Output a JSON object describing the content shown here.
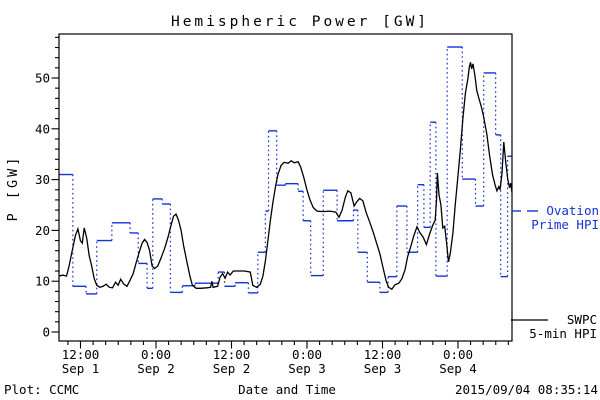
{
  "title": "Hemispheric Power [GW]",
  "footer": {
    "plot_source": "Plot: CCMC",
    "timestamp": "2015/09/04 08:35:14"
  },
  "legend": {
    "ovation": {
      "line1": "Ovation",
      "line2": "Prime HPI",
      "color": "#1433d6"
    },
    "swpc": {
      "line1": "SWPC",
      "line2": "5-min HPI",
      "color": "#000000"
    }
  },
  "chart_data": {
    "type": "line",
    "title": "Hemispheric Power [GW]",
    "xlabel": "Date and Time",
    "ylabel": "P [GW]",
    "grid": false,
    "legend_position": "right-outside",
    "ylim": [
      -1.8,
      58.6
    ],
    "xlim_hours": [
      0,
      72
    ],
    "x_unit": "hours_from_plot_start",
    "y_major_ticks": [
      0,
      10,
      20,
      30,
      40,
      50
    ],
    "y_minor_tick_gw": 2,
    "x_minor_tick_hours": 2,
    "x_major_ticks": [
      {
        "t": 3.42,
        "time": "12:00",
        "date": "Sep 1"
      },
      {
        "t": 15.42,
        "time": "0:00",
        "date": "Sep 2"
      },
      {
        "t": 27.42,
        "time": "12:00",
        "date": "Sep 2"
      },
      {
        "t": 39.42,
        "time": "0:00",
        "date": "Sep 3"
      },
      {
        "t": 51.42,
        "time": "12:00",
        "date": "Sep 3"
      },
      {
        "t": 63.42,
        "time": "0:00",
        "date": "Sep 4"
      }
    ],
    "series": [
      {
        "name": "Ovation Prime HPI",
        "style": "step-dotted",
        "color": "#1433d6",
        "points": [
          [
            0.0,
            31.0
          ],
          [
            2.2,
            9.0
          ],
          [
            4.3,
            7.5
          ],
          [
            6.0,
            18.0
          ],
          [
            8.4,
            21.5
          ],
          [
            11.3,
            19.5
          ],
          [
            12.6,
            13.5
          ],
          [
            14.0,
            8.6
          ],
          [
            14.9,
            26.2
          ],
          [
            16.4,
            25.2
          ],
          [
            17.7,
            7.8
          ],
          [
            19.6,
            9.1
          ],
          [
            21.6,
            9.6
          ],
          [
            25.3,
            11.8
          ],
          [
            26.3,
            9.0
          ],
          [
            28.0,
            9.7
          ],
          [
            30.1,
            7.7
          ],
          [
            31.6,
            15.7
          ],
          [
            32.8,
            23.8
          ],
          [
            33.3,
            39.6
          ],
          [
            34.6,
            28.9
          ],
          [
            36.0,
            29.2
          ],
          [
            38.0,
            27.7
          ],
          [
            38.8,
            21.9
          ],
          [
            40.0,
            11.1
          ],
          [
            42.0,
            27.9
          ],
          [
            44.2,
            21.9
          ],
          [
            46.8,
            24.0
          ],
          [
            47.5,
            15.7
          ],
          [
            49.0,
            9.8
          ],
          [
            51.0,
            7.8
          ],
          [
            52.3,
            10.9
          ],
          [
            53.7,
            24.8
          ],
          [
            55.3,
            15.7
          ],
          [
            57.0,
            29.0
          ],
          [
            58.0,
            20.6
          ],
          [
            59.0,
            41.3
          ],
          [
            59.9,
            11.0
          ],
          [
            61.7,
            56.1
          ],
          [
            64.1,
            30.1
          ],
          [
            66.2,
            24.8
          ],
          [
            67.5,
            51.0
          ],
          [
            69.4,
            38.8
          ],
          [
            70.2,
            10.9
          ],
          [
            71.3,
            34.6
          ]
        ],
        "end_hour": 72
      },
      {
        "name": "SWPC 5-min HPI",
        "style": "line",
        "color": "#000000",
        "points": [
          [
            0,
            11
          ],
          [
            0.6,
            11.2
          ],
          [
            1.2,
            11
          ],
          [
            1.6,
            13
          ],
          [
            2.1,
            16
          ],
          [
            2.6,
            19
          ],
          [
            3,
            20.3
          ],
          [
            3.4,
            18
          ],
          [
            3.7,
            17.5
          ],
          [
            4,
            20.5
          ],
          [
            4.4,
            18.5
          ],
          [
            4.8,
            15
          ],
          [
            5.2,
            13
          ],
          [
            5.6,
            10.5
          ],
          [
            6,
            9.2
          ],
          [
            6.5,
            8.8
          ],
          [
            7,
            9
          ],
          [
            7.5,
            9.4
          ],
          [
            8,
            8.8
          ],
          [
            8.5,
            8.7
          ],
          [
            9,
            9.8
          ],
          [
            9.4,
            9.2
          ],
          [
            9.8,
            10.4
          ],
          [
            10.3,
            9.4
          ],
          [
            10.8,
            9
          ],
          [
            11.3,
            10.2
          ],
          [
            11.8,
            11.5
          ],
          [
            12.2,
            13.4
          ],
          [
            12.7,
            15.5
          ],
          [
            13.2,
            17.5
          ],
          [
            13.6,
            18.2
          ],
          [
            14,
            17.6
          ],
          [
            14.4,
            16
          ],
          [
            14.8,
            13
          ],
          [
            15.2,
            12.5
          ],
          [
            15.7,
            13
          ],
          [
            16.2,
            14.5
          ],
          [
            16.8,
            16.5
          ],
          [
            17.3,
            18.5
          ],
          [
            17.8,
            21
          ],
          [
            18.2,
            22.8
          ],
          [
            18.6,
            23.2
          ],
          [
            19,
            22
          ],
          [
            19.4,
            20
          ],
          [
            19.8,
            17
          ],
          [
            20.3,
            14
          ],
          [
            20.8,
            11
          ],
          [
            21.2,
            9.2
          ],
          [
            21.8,
            8.6
          ],
          [
            22.5,
            8.6
          ],
          [
            23.5,
            8.7
          ],
          [
            24.1,
            8.8
          ],
          [
            24.3,
            10
          ],
          [
            24.5,
            8.8
          ],
          [
            25.2,
            9
          ],
          [
            25.6,
            10.8
          ],
          [
            26,
            11.5
          ],
          [
            26.4,
            10.6
          ],
          [
            26.8,
            11.8
          ],
          [
            27.2,
            11.2
          ],
          [
            27.7,
            12
          ],
          [
            28.5,
            12
          ],
          [
            29.5,
            12
          ],
          [
            30.4,
            11.8
          ],
          [
            30.8,
            9.2
          ],
          [
            31.4,
            8.8
          ],
          [
            32,
            9.4
          ],
          [
            32.4,
            11
          ],
          [
            32.8,
            14
          ],
          [
            33.2,
            18
          ],
          [
            33.6,
            22
          ],
          [
            34,
            25.5
          ],
          [
            34.4,
            28.5
          ],
          [
            34.8,
            31
          ],
          [
            35.3,
            32.8
          ],
          [
            35.8,
            33.4
          ],
          [
            36.4,
            33.2
          ],
          [
            36.9,
            33.7
          ],
          [
            37.4,
            33.3
          ],
          [
            38,
            33.5
          ],
          [
            38.4,
            32.5
          ],
          [
            38.9,
            30.5
          ],
          [
            39.4,
            28
          ],
          [
            39.9,
            26
          ],
          [
            40.4,
            24.5
          ],
          [
            41,
            23.8
          ],
          [
            42,
            23.7
          ],
          [
            43,
            23.8
          ],
          [
            44,
            23.6
          ],
          [
            44.5,
            22.6
          ],
          [
            45,
            24
          ],
          [
            45.5,
            26.5
          ],
          [
            45.9,
            27.8
          ],
          [
            46.4,
            27.4
          ],
          [
            46.9,
            24.8
          ],
          [
            47.3,
            25.6
          ],
          [
            47.8,
            26.3
          ],
          [
            48.3,
            25.8
          ],
          [
            48.8,
            23.6
          ],
          [
            49.4,
            21.6
          ],
          [
            50,
            19.4
          ],
          [
            50.5,
            17.4
          ],
          [
            51,
            15.4
          ],
          [
            51.5,
            12.7
          ],
          [
            52,
            10
          ],
          [
            52.4,
            8.8
          ],
          [
            52.9,
            8.4
          ],
          [
            53.4,
            9.3
          ],
          [
            54,
            9.6
          ],
          [
            54.5,
            10.5
          ],
          [
            55,
            12.2
          ],
          [
            55.4,
            14.8
          ],
          [
            55.9,
            16.8
          ],
          [
            56.4,
            19
          ],
          [
            56.9,
            20.7
          ],
          [
            57.4,
            19.5
          ],
          [
            57.9,
            18.6
          ],
          [
            58.4,
            17.2
          ],
          [
            58.9,
            19.3
          ],
          [
            59.4,
            21
          ],
          [
            59.8,
            22
          ],
          [
            60,
            26
          ],
          [
            60.15,
            31.3
          ],
          [
            60.4,
            27
          ],
          [
            60.7,
            25
          ],
          [
            61,
            20.5
          ],
          [
            61.3,
            20.8
          ],
          [
            61.6,
            17.5
          ],
          [
            61.9,
            13.8
          ],
          [
            62.2,
            15.5
          ],
          [
            62.6,
            19.5
          ],
          [
            63,
            25.4
          ],
          [
            63.4,
            30.6
          ],
          [
            63.8,
            36
          ],
          [
            64.2,
            42
          ],
          [
            64.6,
            47
          ],
          [
            65,
            50
          ],
          [
            65.2,
            52
          ],
          [
            65.4,
            53.1
          ],
          [
            65.6,
            51.8
          ],
          [
            65.8,
            52.8
          ],
          [
            66.1,
            50.5
          ],
          [
            66.4,
            47.5
          ],
          [
            66.8,
            45.7
          ],
          [
            67.2,
            44
          ],
          [
            67.5,
            42.3
          ],
          [
            68,
            39
          ],
          [
            68.4,
            35
          ],
          [
            68.9,
            31
          ],
          [
            69.3,
            29
          ],
          [
            69.6,
            27.8
          ],
          [
            69.9,
            28.6
          ],
          [
            70.1,
            28
          ],
          [
            70.4,
            31
          ],
          [
            70.7,
            37.4
          ],
          [
            71,
            33.5
          ],
          [
            71.3,
            30.3
          ],
          [
            71.6,
            28.4
          ],
          [
            71.8,
            29.3
          ],
          [
            72,
            27.5
          ]
        ]
      }
    ]
  }
}
